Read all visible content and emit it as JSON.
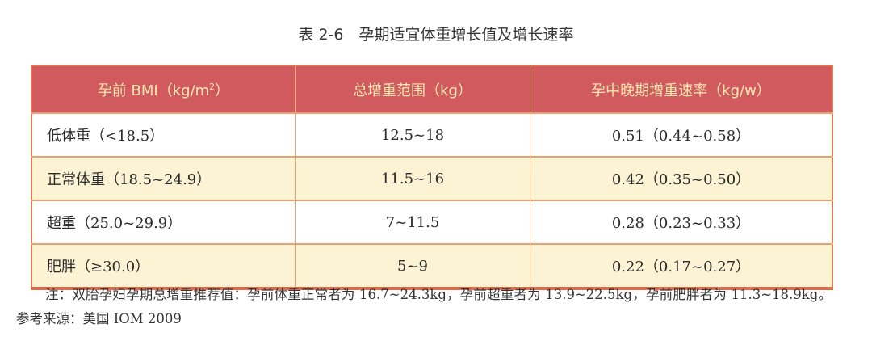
{
  "title": "表 2-6　孕期适宜体重增长值及增长速率",
  "table": {
    "headers": [
      "孕前 BMI（kg/m",
      "总增重范围（kg）",
      "孕中晚期增重速率（kg/w）"
    ],
    "header_sup": "2",
    "header_suffix": "）",
    "rows": [
      [
        "低体重（<18.5）",
        "12.5~18",
        "0.51（0.44~0.58）"
      ],
      [
        "正常体重（18.5~24.9）",
        "11.5~16",
        "0.42（0.35~0.50）"
      ],
      [
        "超重（25.0~29.9）",
        "7~11.5",
        "0.28（0.23~0.33）"
      ],
      [
        "肥胖（≥30.0）",
        "5~9",
        "0.22（0.17~0.27）"
      ]
    ]
  },
  "note": "注：双胎孕妇孕期总增重推荐值：孕前体重正常者为 16.7~24.3kg，孕前超重者为 13.9~22.5kg，孕前肥胖者为 11.3~18.9kg。参考来源：美国 IOM 2009",
  "colors": {
    "header_bg": "#d05a5e",
    "header_text": "#f8e6b0",
    "alt_row": "#fcf3d4",
    "border": "#e07a52"
  }
}
